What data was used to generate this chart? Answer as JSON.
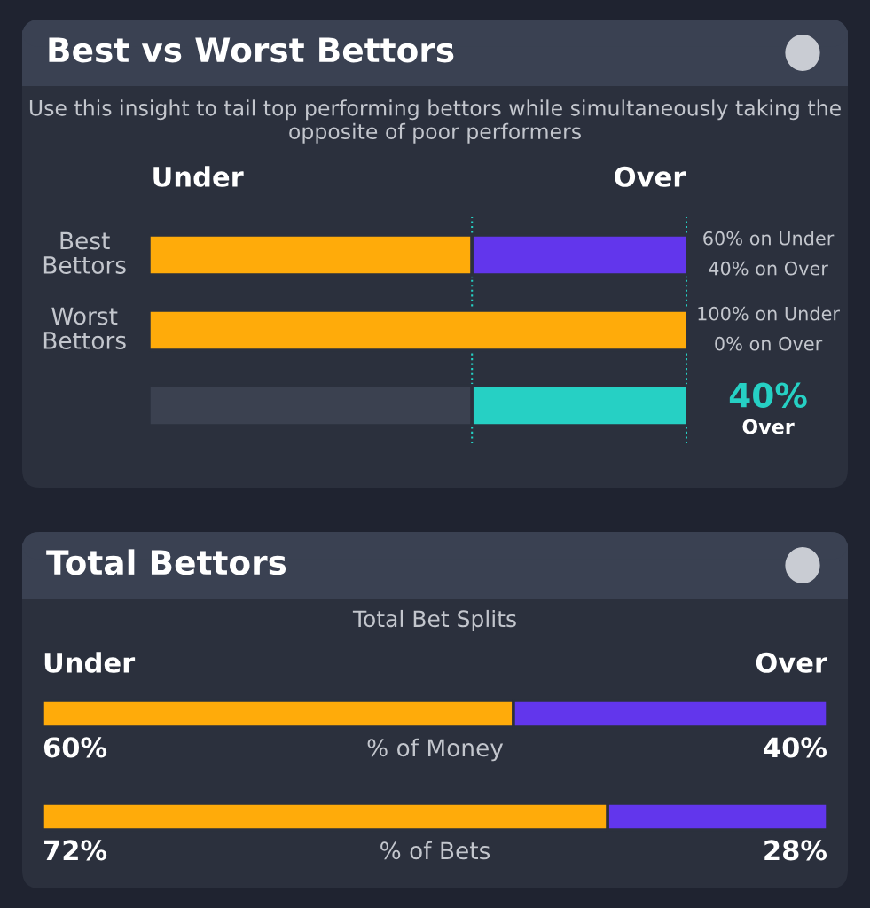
{
  "chart_data": [
    {
      "type": "bar",
      "orientation": "horizontal",
      "stacked": true,
      "title": "Best vs Worst Bettors",
      "subtitle": "Use this insight to tail top performing bettors while simultaneously taking the opposite of poor performers",
      "categories": [
        "Best Bettors",
        "Worst Bettors",
        null
      ],
      "xlim": [
        0,
        100
      ],
      "series": [
        {
          "name": "Under",
          "color": "#ffab0a",
          "colors": [
            "#ffab0a",
            "#ffab0a",
            "#3b4150"
          ],
          "values": [
            60,
            100,
            60
          ],
          "value_labels": [
            "60% on Under",
            "100% on Under",
            null
          ]
        },
        {
          "name": "Over",
          "color": "#6236ec",
          "colors": [
            "#6236ec",
            "#6236ec",
            "#26d0c4"
          ],
          "values": [
            40,
            0,
            40
          ],
          "value_labels": [
            "40% on Over",
            "0% on Over",
            "40%"
          ]
        }
      ],
      "ref_lines": [
        {
          "axis": "x",
          "value": 60,
          "color": "#26d0c4",
          "line_style": "dotted"
        },
        {
          "axis": "x",
          "value": 100,
          "color": "#26d0c4",
          "line_style": "dotted"
        }
      ],
      "annotations": [
        "Over"
      ]
    },
    {
      "type": "bar",
      "orientation": "horizontal",
      "stacked": true,
      "title": "Total Bettors",
      "subtitle": "Total Bet Splits",
      "categories": [
        "% of Money",
        "% of Bets"
      ],
      "xlim": [
        0,
        100
      ],
      "series": [
        {
          "name": "Under",
          "color": "#ffab0a",
          "values": [
            60,
            72
          ],
          "value_labels": [
            "60%",
            "72%"
          ]
        },
        {
          "name": "Over",
          "color": "#6236ec",
          "values": [
            40,
            28
          ],
          "value_labels": [
            "40%",
            "28%"
          ]
        }
      ]
    }
  ]
}
